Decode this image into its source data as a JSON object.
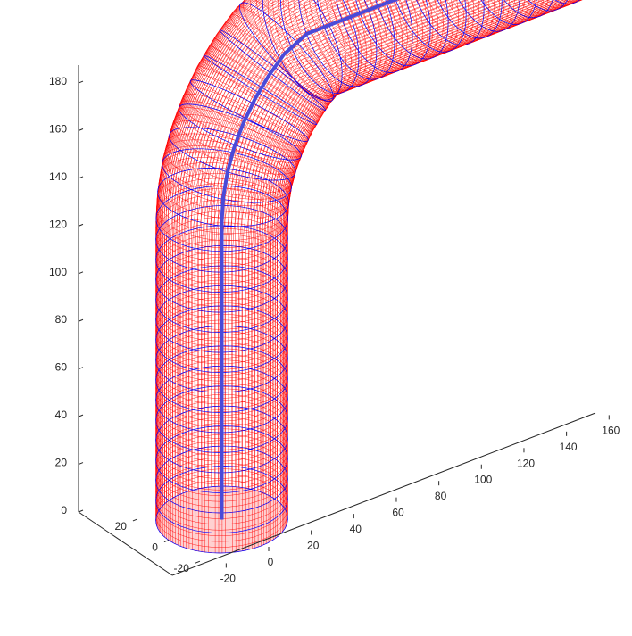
{
  "chart_data": {
    "type": "3d-tube-surface",
    "title": "",
    "xlabel": "",
    "ylabel": "",
    "zlabel": "",
    "grid": false,
    "legend": "none",
    "colors": {
      "tube_mesh": "#ff0000",
      "ring_lines": "#0000ff",
      "centerline": "#4a4ad8",
      "axis": "#262626"
    },
    "tube_radius": 25,
    "axes": {
      "x": {
        "lim": [
          -25,
          170
        ],
        "ticks": [
          -20,
          0,
          20,
          40,
          60,
          80,
          100,
          120,
          140,
          160
        ]
      },
      "y": {
        "lim": [
          -30,
          25
        ],
        "ticks": [
          -20,
          0,
          20
        ]
      },
      "z": {
        "lim": [
          0,
          190
        ],
        "ticks": [
          0,
          20,
          40,
          60,
          80,
          100,
          120,
          140,
          160,
          180
        ]
      }
    },
    "centerline": [
      {
        "x": 0,
        "y": 0,
        "z": 0
      },
      {
        "x": 0,
        "y": 0,
        "z": 125
      },
      {
        "x": 0.66,
        "y": 0,
        "z": 135
      },
      {
        "x": 2.59,
        "y": 0,
        "z": 144.7
      },
      {
        "x": 5.78,
        "y": 0,
        "z": 154.1
      },
      {
        "x": 10.2,
        "y": 0,
        "z": 163
      },
      {
        "x": 15.6,
        "y": 0,
        "z": 171.2
      },
      {
        "x": 22.1,
        "y": 0,
        "z": 178.7
      },
      {
        "x": 29.3,
        "y": 0,
        "z": 185.2
      },
      {
        "x": 40,
        "y": 0,
        "z": 190
      },
      {
        "x": 165,
        "y": 0,
        "z": 190
      }
    ]
  }
}
